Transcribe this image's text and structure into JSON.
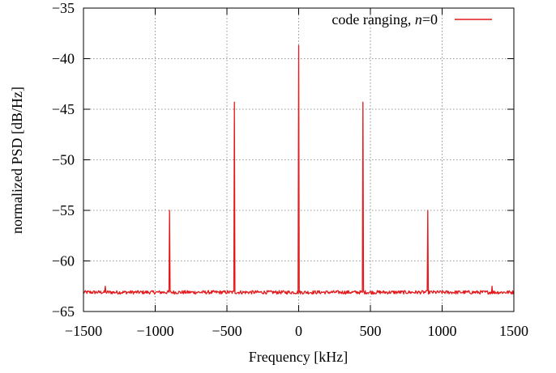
{
  "chart_data": {
    "type": "line",
    "xlabel": "Frequency [kHz]",
    "ylabel": "normalized PSD [dB/Hz]",
    "xlim": [
      -1500,
      1500
    ],
    "ylim": [
      -65,
      -35
    ],
    "x_ticks": [
      -1500,
      -1000,
      -500,
      0,
      500,
      1000,
      1500
    ],
    "y_ticks": [
      -65,
      -60,
      -55,
      -50,
      -45,
      -40,
      -35
    ],
    "x_tick_labels": [
      "−1500",
      "−1000",
      "−500",
      "0",
      "500",
      "1000",
      "1500"
    ],
    "y_tick_labels": [
      "−65",
      "−60",
      "−55",
      "−50",
      "−45",
      "−40",
      "−35"
    ],
    "grid": true,
    "legend_position": "top-right",
    "series": [
      {
        "name": "code ranging, n=0",
        "legend_prefix": "code ranging, ",
        "legend_var": "n",
        "legend_suffix": "=0",
        "color": "#e41a1c",
        "noise_floor": -63.1,
        "peaks": [
          {
            "x": -1347,
            "y": -62.5
          },
          {
            "x": -899,
            "y": -55.0
          },
          {
            "x": -449,
            "y": -44.3
          },
          {
            "x": 0,
            "y": -38.7
          },
          {
            "x": 449,
            "y": -44.3
          },
          {
            "x": 899,
            "y": -55.0
          },
          {
            "x": 1347,
            "y": -62.5
          }
        ]
      }
    ]
  }
}
